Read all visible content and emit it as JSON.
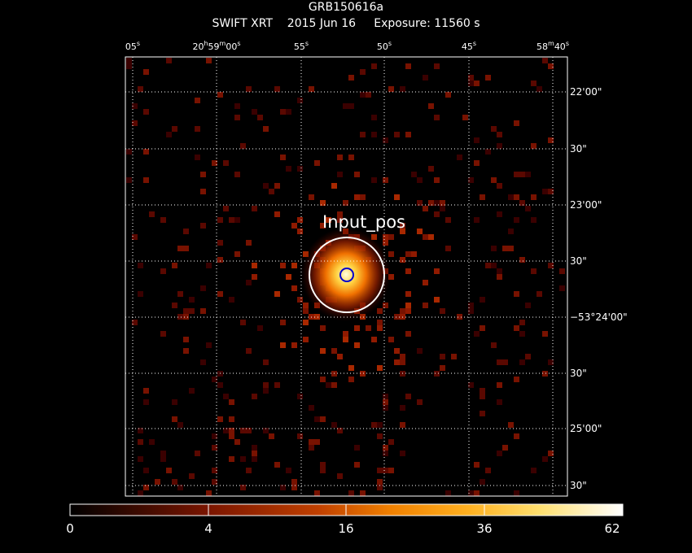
{
  "header": {
    "object": "GRB150616a",
    "instrument": "SWIFT XRT",
    "date": "2015 Jun 16",
    "exposure": "Exposure: 11560 s"
  },
  "ra_labels": [
    {
      "h": "",
      "m": "",
      "s": "05",
      "unit": "s"
    },
    {
      "h": "20",
      "m": "59",
      "s": "00",
      "unit": "s",
      "full": true
    },
    {
      "s": "55",
      "unit": "s"
    },
    {
      "s": "50",
      "unit": "s"
    },
    {
      "s": "45",
      "unit": "s"
    },
    {
      "m": "58",
      "s": "40",
      "unit": "s",
      "minute": true
    }
  ],
  "dec_labels": [
    "22'00\"",
    "30\"",
    "23'00\"",
    "30\"",
    "−53°24'00\"",
    "30\"",
    "25'00\"",
    "30\""
  ],
  "source_label": "Input_pos",
  "colorbar": {
    "ticks": [
      "0",
      "4",
      "16",
      "36",
      "62"
    ],
    "colors": [
      "#000000",
      "#3a0000",
      "#6e0c00",
      "#a02800",
      "#d05000",
      "#f08000",
      "#ffb000",
      "#ffe060",
      "#ffffc0",
      "#ffffff"
    ]
  }
}
